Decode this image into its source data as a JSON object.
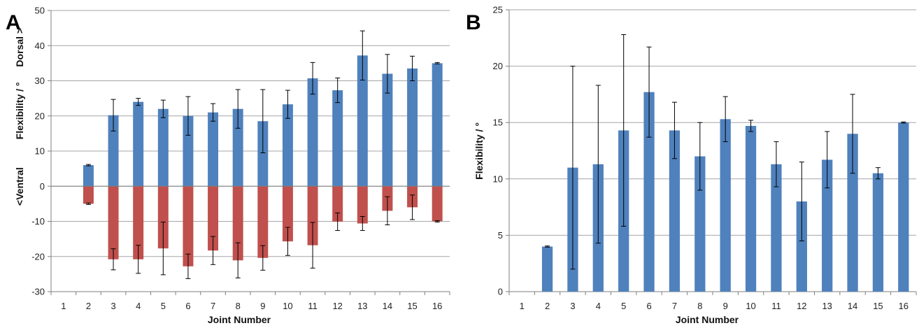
{
  "chart_data": [
    {
      "type": "bar",
      "panel": "A",
      "categories": [
        "1",
        "2",
        "3",
        "4",
        "5",
        "6",
        "7",
        "8",
        "9",
        "10",
        "11",
        "12",
        "13",
        "14",
        "15",
        "16"
      ],
      "xlabel": "Joint Number",
      "ylabel_parts": {
        "low": "<Ventral",
        "mid": "Flexibility  /  °",
        "high": "Dorsal >"
      },
      "ylim": [
        -30,
        50
      ],
      "yticks": [
        -30,
        -20,
        -10,
        0,
        10,
        20,
        30,
        40,
        50
      ],
      "grid": true,
      "series": [
        {
          "color": "#4F81BD",
          "values": [
            null,
            6,
            20.2,
            24,
            22,
            20,
            21,
            22,
            18.5,
            23.3,
            30.7,
            27.3,
            37.2,
            32,
            33.5,
            35
          ],
          "errors": [
            null,
            0.2,
            4.5,
            1,
            2.5,
            5.5,
            2.5,
            5.5,
            9,
            4,
            4.5,
            3.5,
            7,
            5.5,
            3.5,
            0.2
          ]
        },
        {
          "color": "#C0504D",
          "values": [
            null,
            -5,
            -20.8,
            -20.8,
            -17.7,
            -22.8,
            -18.3,
            -21.1,
            -20.4,
            -15.7,
            -16.8,
            -10.1,
            -10.6,
            -7,
            -6,
            -10
          ],
          "errors": [
            null,
            0.2,
            3,
            4,
            7.5,
            3.5,
            4,
            5,
            3.5,
            4,
            6.5,
            2.5,
            2,
            4,
            3.5,
            0.2
          ]
        }
      ]
    },
    {
      "type": "bar",
      "panel": "B",
      "categories": [
        "1",
        "2",
        "3",
        "4",
        "5",
        "6",
        "7",
        "8",
        "9",
        "10",
        "11",
        "12",
        "13",
        "14",
        "15",
        "16"
      ],
      "xlabel": "Joint Number",
      "ylabel": "Flexibility  /  °",
      "ylim": [
        0,
        25
      ],
      "yticks": [
        0,
        5,
        10,
        15,
        20,
        25
      ],
      "grid": true,
      "series": [
        {
          "color": "#4F81BD",
          "values": [
            null,
            4,
            11,
            11.3,
            14.3,
            17.7,
            14.3,
            12,
            15.3,
            14.7,
            11.3,
            8,
            11.7,
            14,
            10.5,
            15
          ],
          "errors": [
            null,
            0.05,
            9,
            7,
            8.5,
            4,
            2.5,
            3,
            2,
            0.5,
            2,
            3.5,
            2.5,
            3.5,
            0.5,
            0.05
          ]
        }
      ]
    }
  ]
}
